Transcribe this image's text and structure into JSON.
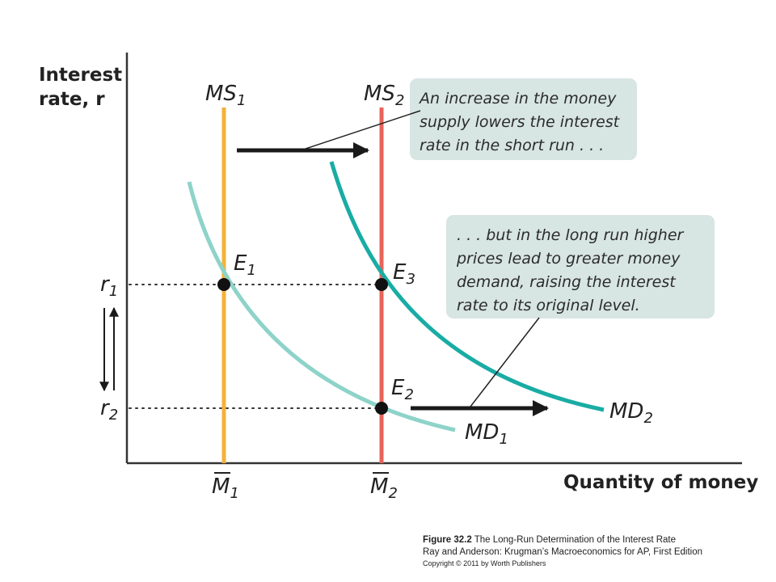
{
  "axes": {
    "y_label_line1": "Interest",
    "y_label_line2": "rate, r",
    "x_label": "Quantity of money"
  },
  "curves": {
    "ms1": {
      "label": "MS",
      "sub": "1",
      "color": "#f4b23a"
    },
    "ms2": {
      "label": "MS",
      "sub": "2",
      "color": "#e8645a"
    },
    "md1": {
      "label": "MD",
      "sub": "1",
      "color": "#8ed3c9"
    },
    "md2": {
      "label": "MD",
      "sub": "2",
      "color": "#19aca4"
    }
  },
  "points": {
    "e1": {
      "label": "E",
      "sub": "1"
    },
    "e2": {
      "label": "E",
      "sub": "2"
    },
    "e3": {
      "label": "E",
      "sub": "3"
    }
  },
  "ticks": {
    "r1": {
      "label": "r",
      "sub": "1"
    },
    "r2": {
      "label": "r",
      "sub": "2"
    },
    "m1": {
      "label": "M",
      "sub": "1"
    },
    "m2": {
      "label": "M",
      "sub": "2"
    }
  },
  "callouts": {
    "top": {
      "line1": "An increase in the money",
      "line2": "supply lowers the interest",
      "line3": "rate in the short run . . ."
    },
    "bottom": {
      "line1": ". . . but in the long run higher",
      "line2": "prices lead to greater money",
      "line3": "demand, raising the interest",
      "line4": "rate to its original level."
    },
    "box_color": "#d7e5e3"
  },
  "caption": {
    "figure_number": "Figure 32.2",
    "figure_title": "The Long-Run Determination of the Interest Rate",
    "source": "Ray and Anderson: Krugman’s Macroeconomics for AP, First Edition",
    "copyright": "Copyright © 2011 by Worth Publishers"
  }
}
